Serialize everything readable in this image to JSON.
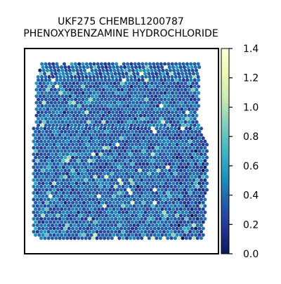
{
  "chart_data": {
    "type": "heatmap",
    "title_lines": [
      "UKF275 CHEMBL1200787",
      "PHENOXYBENZAMINE HYDROCHLORIDE"
    ],
    "xlabel": "",
    "ylabel": "",
    "colorbar": {
      "colormap": "YlGnBu",
      "range": [
        0.0,
        1.4
      ],
      "ticks": [
        0.0,
        0.2,
        0.4,
        0.6,
        0.8,
        1.0,
        1.2,
        1.4
      ],
      "tick_labels": [
        "0.0",
        "0.2",
        "0.4",
        "0.6",
        "0.8",
        "1.0",
        "1.2",
        "1.4"
      ]
    },
    "spot_value_distribution": {
      "typical": 0.35,
      "min": 0.0,
      "max": 1.4,
      "notes": "hexagonal spatial spot grid; majority of spots around 0.2-0.5, scattered higher values up to ~1.0-1.3, a few near-white spots"
    },
    "grid": false,
    "legend": "colorbar-right"
  },
  "colors": {
    "colormap_stops": [
      "#081d58",
      "#253494",
      "#225ea8",
      "#1d91c0",
      "#41b6c4",
      "#7fcdbb",
      "#c7e9b4",
      "#edf8b1",
      "#ffffd9"
    ]
  }
}
